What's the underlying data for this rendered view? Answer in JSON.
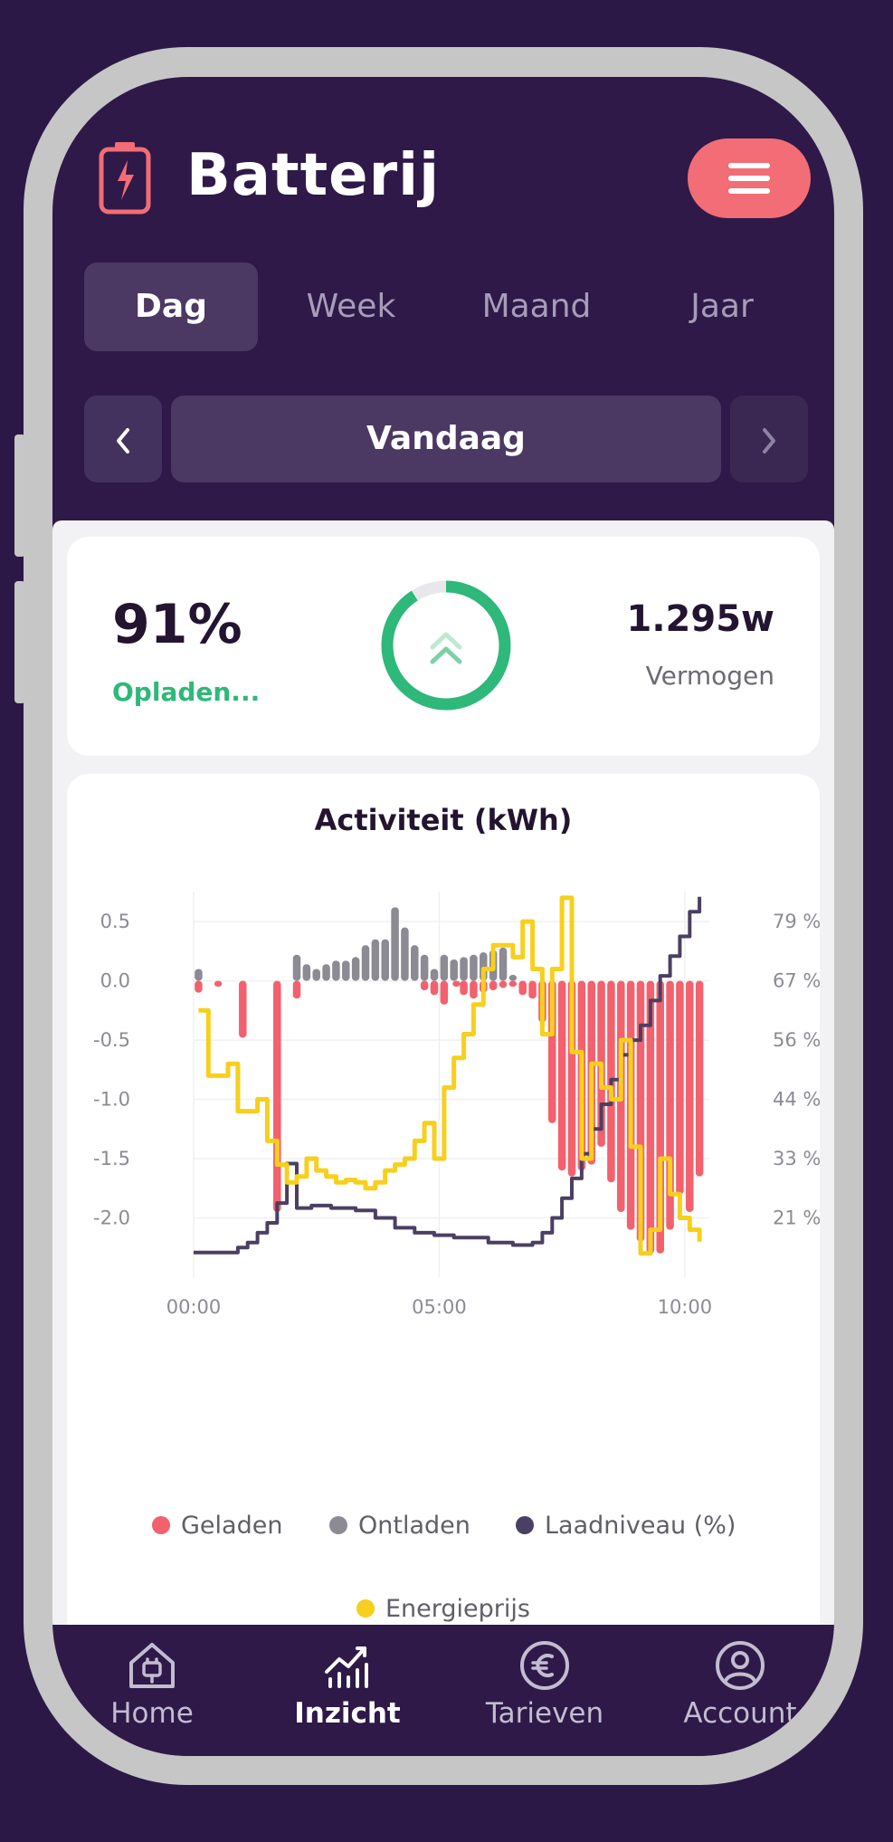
{
  "app": {
    "title": "Batterij"
  },
  "tabs": [
    {
      "label": "Dag",
      "active": true
    },
    {
      "label": "Week",
      "active": false
    },
    {
      "label": "Maand",
      "active": false
    },
    {
      "label": "Jaar",
      "active": false
    }
  ],
  "datebar": {
    "prev": "‹",
    "label": "Vandaag",
    "next": "›"
  },
  "status": {
    "percentage": "91%",
    "state": "Opladen...",
    "power": "1.295w",
    "power_label": "Vermogen",
    "ring_level": 0.91
  },
  "colors": {
    "accent": "#f26d75",
    "charge_green": "#2eb879",
    "geladen": "#f2616d",
    "ontladen": "#8c8a93",
    "laadniveau": "#4b3f63",
    "energieprijs": "#f7cf1d",
    "background": "#2e1948"
  },
  "chart_data": {
    "type": "bar",
    "title": "Activiteit (kWh)",
    "x_ticks": [
      "00:00",
      "05:00",
      "10:00"
    ],
    "y_ticks": [
      "0.5",
      "0.0",
      "-0.5",
      "-1.0",
      "-1.5",
      "-2.0"
    ],
    "y2_ticks": [
      "79 %",
      "67 %",
      "56 %",
      "44 %",
      "33 %",
      "21 %"
    ],
    "ylim": [
      -2.5,
      0.6
    ],
    "xlim": [
      0,
      10.5
    ],
    "legend": [
      {
        "label": "Geladen",
        "color": "#f2616d"
      },
      {
        "label": "Ontladen",
        "color": "#8c8a93"
      },
      {
        "label": "Laadniveau (%)",
        "color": "#4b3f63"
      },
      {
        "label": "Energieprijs",
        "color": "#f7cf1d"
      }
    ],
    "series": [
      {
        "name": "Geladen",
        "x": [
          0.1,
          0.5,
          1.0,
          1.7,
          2.1,
          4.7,
          4.9,
          5.1,
          5.35,
          5.5,
          5.7,
          5.9,
          6.1,
          6.3,
          6.5,
          6.7,
          6.9,
          7.1,
          7.3,
          7.5,
          7.7,
          7.9,
          8.1,
          8.3,
          8.5,
          8.7,
          8.9,
          9.1,
          9.3,
          9.5,
          9.7,
          9.9,
          10.1,
          10.3
        ],
        "values": [
          -0.1,
          -0.05,
          -0.48,
          -1.95,
          -0.15,
          -0.08,
          -0.12,
          -0.2,
          -0.05,
          -0.12,
          -0.15,
          -0.1,
          -0.08,
          -0.06,
          -0.05,
          -0.12,
          -0.15,
          -0.35,
          -1.2,
          -1.6,
          -1.65,
          -1.6,
          -1.55,
          -1.4,
          -1.7,
          -1.95,
          -2.1,
          -2.2,
          -2.3,
          -2.3,
          -2.1,
          -1.8,
          -1.95,
          -1.65
        ]
      },
      {
        "name": "Ontladen",
        "x": [
          0.1,
          2.1,
          2.3,
          2.5,
          2.7,
          2.9,
          3.1,
          3.3,
          3.5,
          3.7,
          3.9,
          4.1,
          4.3,
          4.5,
          4.7,
          4.9,
          5.1,
          5.3,
          5.5,
          5.7,
          5.9,
          6.1,
          6.3,
          6.5
        ],
        "values": [
          0.1,
          0.22,
          0.14,
          0.1,
          0.14,
          0.17,
          0.17,
          0.2,
          0.3,
          0.35,
          0.35,
          0.62,
          0.45,
          0.3,
          0.22,
          0.1,
          0.22,
          0.18,
          0.2,
          0.22,
          0.24,
          0.26,
          0.28,
          0.05
        ]
      },
      {
        "name": "Laadniveau (%)",
        "x": [
          0.0,
          0.6,
          0.9,
          1.1,
          1.3,
          1.5,
          1.7,
          1.9,
          2.1,
          2.4,
          2.8,
          3.3,
          3.7,
          4.1,
          4.5,
          4.9,
          5.3,
          6.0,
          6.5,
          6.9,
          7.1,
          7.3,
          7.5,
          7.7,
          7.9,
          8.1,
          8.3,
          8.5,
          8.7,
          8.9,
          9.1,
          9.3,
          9.5,
          9.7,
          9.9,
          10.1,
          10.3
        ],
        "values": [
          12,
          12,
          13,
          14,
          16,
          18,
          22,
          30,
          21,
          21.5,
          21,
          20.5,
          19,
          17,
          16,
          15.5,
          15,
          14,
          13.5,
          14,
          16,
          19,
          23,
          27,
          32,
          37,
          42,
          47,
          52,
          55,
          58,
          63,
          68,
          72,
          76,
          81,
          84
        ]
      },
      {
        "name": "Energieprijs",
        "x": [
          0.1,
          0.3,
          0.7,
          0.9,
          1.3,
          1.5,
          1.7,
          1.9,
          2.1,
          2.3,
          2.5,
          2.7,
          2.9,
          3.1,
          3.3,
          3.5,
          3.7,
          3.9,
          4.1,
          4.3,
          4.5,
          4.7,
          4.9,
          5.1,
          5.3,
          5.5,
          5.7,
          5.9,
          6.1,
          6.3,
          6.5,
          6.7,
          6.9,
          7.1,
          7.3,
          7.5,
          7.7,
          7.9,
          8.1,
          8.3,
          8.5,
          8.7,
          8.9,
          9.1,
          9.3,
          9.5,
          9.7,
          9.9,
          10.1,
          10.3
        ],
        "values": [
          -0.25,
          -0.8,
          -0.7,
          -1.1,
          -1.0,
          -1.35,
          -1.55,
          -1.7,
          -1.65,
          -1.5,
          -1.6,
          -1.65,
          -1.7,
          -1.68,
          -1.7,
          -1.75,
          -1.7,
          -1.6,
          -1.55,
          -1.5,
          -1.35,
          -1.2,
          -1.5,
          -0.9,
          -0.65,
          -0.45,
          -0.2,
          0.1,
          0.3,
          0.3,
          0.2,
          0.5,
          0.1,
          -0.45,
          0.1,
          0.7,
          -0.6,
          -1.5,
          -0.7,
          -0.9,
          -1.0,
          -0.5,
          -1.4,
          -2.3,
          -2.1,
          -1.5,
          -1.8,
          -2.0,
          -2.1,
          -2.2
        ]
      }
    ]
  },
  "bottom_nav": [
    {
      "label": "Home",
      "icon": "home-plug-icon",
      "active": false
    },
    {
      "label": "Inzicht",
      "icon": "insights-chart-icon",
      "active": true
    },
    {
      "label": "Tarieven",
      "icon": "euro-icon",
      "active": false
    },
    {
      "label": "Account",
      "icon": "account-user-icon",
      "active": false
    }
  ]
}
